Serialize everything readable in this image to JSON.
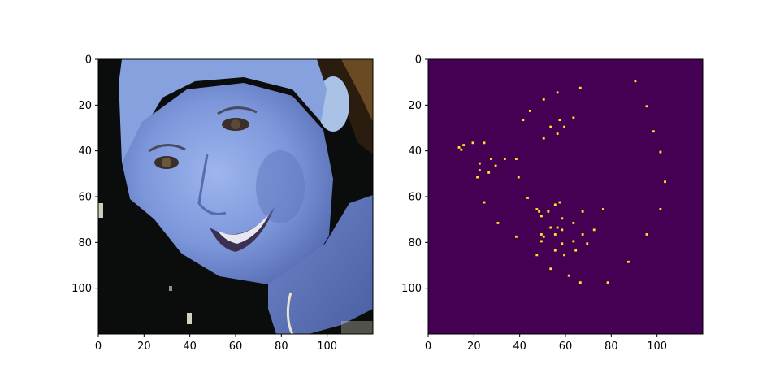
{
  "chart_data": [
    {
      "type": "image",
      "subject": "photo-face",
      "xlim": [
        0,
        120
      ],
      "ylim": [
        120,
        0
      ],
      "xticks": [
        0,
        20,
        40,
        60,
        80,
        100
      ],
      "yticks": [
        0,
        20,
        40,
        60,
        80,
        100
      ],
      "colors": {
        "background_dark": "#0b0d0c",
        "skin_light": "#8aa6e6",
        "skin_mid": "#6f8ad0",
        "skin_shadow": "#4e63a4",
        "hair_brown": "#5a4023",
        "ear": "#9fbbe0"
      }
    },
    {
      "type": "heatmap",
      "colormap": "viridis",
      "background_color": "#440154",
      "point_color": "#fde725",
      "xlim": [
        0,
        120
      ],
      "ylim": [
        120,
        0
      ],
      "xticks": [
        0,
        20,
        40,
        60,
        80,
        100
      ],
      "yticks": [
        0,
        20,
        40,
        60,
        80,
        100
      ],
      "points": [
        [
          90,
          9
        ],
        [
          66,
          12
        ],
        [
          56,
          14
        ],
        [
          50,
          17
        ],
        [
          44,
          22
        ],
        [
          95,
          20
        ],
        [
          63,
          25
        ],
        [
          41,
          26
        ],
        [
          57,
          26
        ],
        [
          53,
          29
        ],
        [
          59,
          29
        ],
        [
          56,
          32
        ],
        [
          98,
          31
        ],
        [
          50,
          34
        ],
        [
          19,
          36
        ],
        [
          24,
          36
        ],
        [
          15,
          37
        ],
        [
          13,
          38
        ],
        [
          14,
          39
        ],
        [
          101,
          40
        ],
        [
          27,
          43
        ],
        [
          33,
          43
        ],
        [
          38,
          43
        ],
        [
          22,
          45
        ],
        [
          29,
          46
        ],
        [
          22,
          48
        ],
        [
          26,
          49
        ],
        [
          21,
          51
        ],
        [
          39,
          51
        ],
        [
          103,
          53
        ],
        [
          43,
          60
        ],
        [
          24,
          62
        ],
        [
          57,
          62
        ],
        [
          55,
          63
        ],
        [
          47,
          65
        ],
        [
          48,
          66
        ],
        [
          52,
          66
        ],
        [
          67,
          66
        ],
        [
          76,
          65
        ],
        [
          101,
          65
        ],
        [
          49,
          68
        ],
        [
          58,
          69
        ],
        [
          30,
          71
        ],
        [
          63,
          71
        ],
        [
          53,
          73
        ],
        [
          56,
          73
        ],
        [
          58,
          74
        ],
        [
          72,
          74
        ],
        [
          49,
          76
        ],
        [
          55,
          76
        ],
        [
          50,
          77
        ],
        [
          67,
          76
        ],
        [
          38,
          77
        ],
        [
          49,
          79
        ],
        [
          63,
          79
        ],
        [
          58,
          80
        ],
        [
          69,
          80
        ],
        [
          95,
          76
        ],
        [
          55,
          83
        ],
        [
          64,
          83
        ],
        [
          47,
          85
        ],
        [
          59,
          85
        ],
        [
          53,
          91
        ],
        [
          87,
          88
        ],
        [
          61,
          94
        ],
        [
          66,
          97
        ],
        [
          78,
          97
        ]
      ]
    }
  ]
}
